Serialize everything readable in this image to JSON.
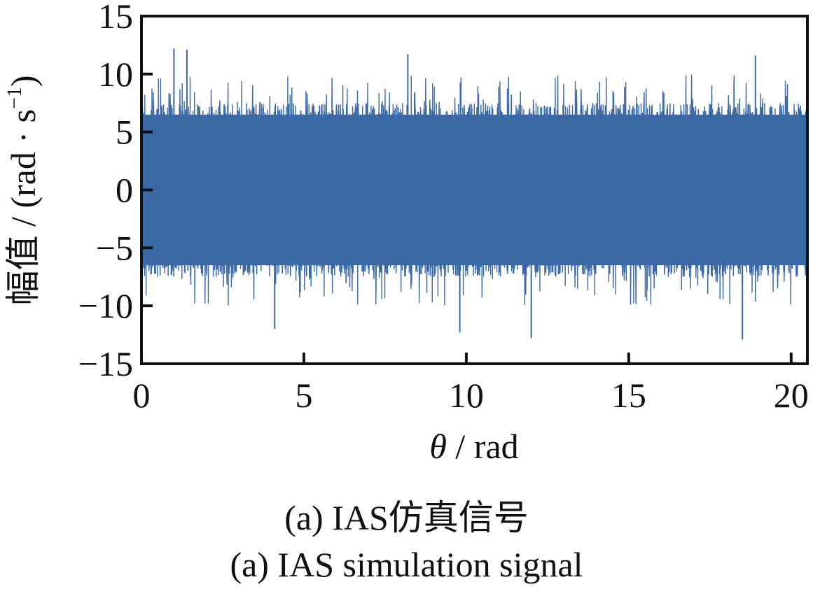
{
  "chart_data": {
    "type": "line",
    "title": "",
    "xlabel_symbol": "θ",
    "xlabel_unit": " / rad",
    "ylabel_cn": "幅值",
    "ylabel_unit": " / (rad · s",
    "ylabel_sup": "−1",
    "ylabel_close": ")",
    "xlim": [
      0,
      20.5
    ],
    "ylim": [
      -15,
      15
    ],
    "xticks": [
      0,
      5,
      10,
      15,
      20
    ],
    "xtick_labels": [
      "0",
      "5",
      "10",
      "15",
      "20"
    ],
    "yticks": [
      15,
      10,
      5,
      0,
      -5,
      -10,
      -15
    ],
    "ytick_labels": [
      "15",
      "10",
      "5",
      "0",
      "−5",
      "−10",
      "−15"
    ],
    "grid": false,
    "series": [
      {
        "name": "IAS simulation signal",
        "color": "#3a69a5",
        "signal": {
          "kind": "dense noise-like oscillation",
          "samples": 2600,
          "mean": 0,
          "typical_envelope": [
            -7,
            7
          ],
          "peak_max": 12.3,
          "peak_min": -12.9,
          "notable_peaks": [
            [
              1.0,
              12.2
            ],
            [
              1.4,
              12.1
            ],
            [
              8.2,
              11.7
            ],
            [
              18.9,
              11.6
            ],
            [
              4.1,
              -12.0
            ],
            [
              12.0,
              -12.8
            ],
            [
              18.5,
              -12.9
            ],
            [
              9.8,
              -12.3
            ]
          ]
        }
      }
    ]
  },
  "caption": {
    "cn": "(a)  IAS仿真信号",
    "en": "(a)  IAS simulation signal"
  }
}
